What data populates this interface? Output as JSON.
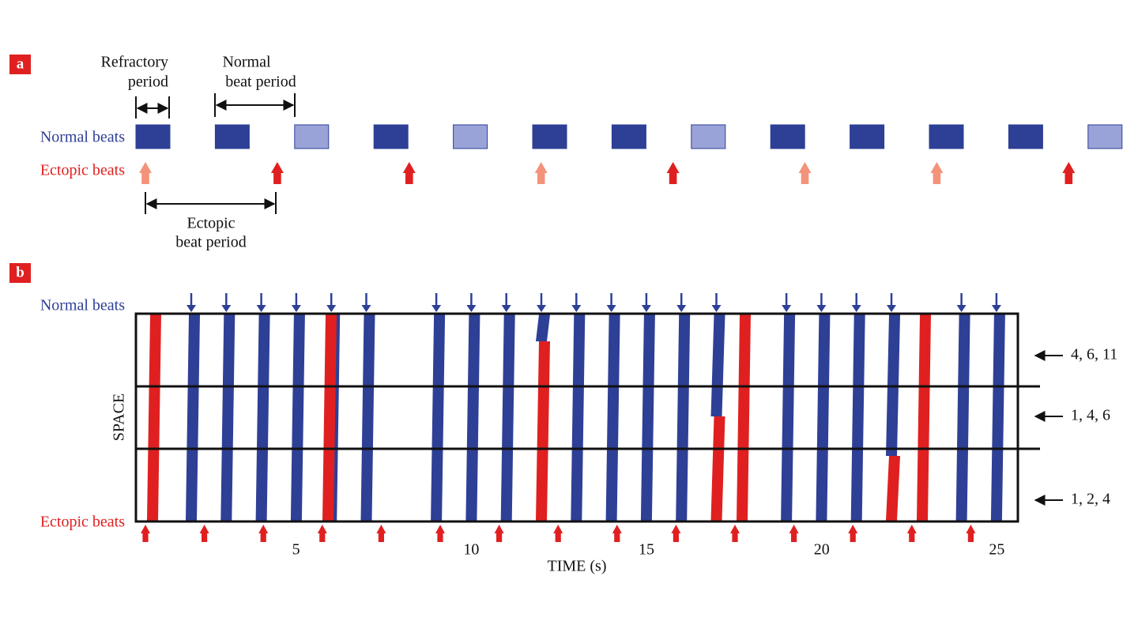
{
  "panel_a": {
    "label": "a",
    "refractory_label": [
      "Refractory",
      "period"
    ],
    "normal_period_label": [
      "Normal",
      "beat period"
    ],
    "normal_beats": "Normal beats",
    "ectopic_beats": "Ectopic beats",
    "ectopic_period_label": [
      "Ectopic",
      "beat period"
    ]
  },
  "panel_b": {
    "label": "b",
    "normal_beats": "Normal beats",
    "ectopic_beats": "Ectopic beats",
    "space_label": "SPACE",
    "time_axis": {
      "label": "TIME (s)",
      "xlim": [
        0.43,
        25.6
      ],
      "xticks": [
        5,
        10,
        15,
        20,
        25
      ]
    },
    "region_labels": [
      "4, 6, 11",
      "1, 4, 6",
      "1, 2, 4"
    ]
  }
}
